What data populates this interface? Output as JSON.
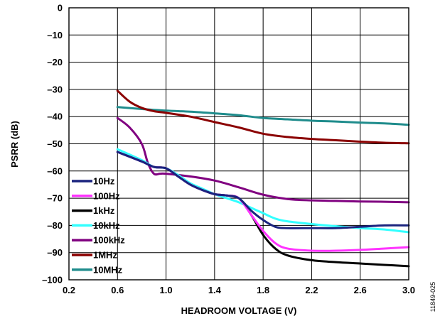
{
  "chart_data": {
    "type": "line",
    "title": "",
    "xlabel": "HEADROOM VOLTAGE (V)",
    "ylabel": "PSRR (dB)",
    "xlim": [
      0.2,
      3.0
    ],
    "ylim": [
      -100,
      0
    ],
    "xticks": [
      "0.2",
      "0.6",
      "1.0",
      "1.4",
      "1.8",
      "2.2",
      "2.6",
      "3.0"
    ],
    "yticks": [
      "0",
      "–10",
      "–20",
      "–30",
      "–40",
      "–50",
      "–60",
      "–70",
      "–80",
      "–90",
      "–100"
    ],
    "grid": true,
    "legend_position": "left",
    "figure_id": "11849-025",
    "series": [
      {
        "name": "10Hz",
        "color": "#1a237e",
        "x": [
          0.6,
          0.8,
          0.9,
          1.0,
          1.1,
          1.2,
          1.3,
          1.4,
          1.5,
          1.6,
          1.7,
          1.8,
          1.9,
          2.0,
          2.2,
          2.4,
          2.6,
          2.8,
          3.0
        ],
        "y": [
          -53,
          -56.5,
          -58.5,
          -59,
          -62,
          -65,
          -67,
          -68.5,
          -69,
          -70,
          -74.5,
          -78,
          -80.5,
          -81,
          -81,
          -81,
          -80.5,
          -80,
          -80
        ]
      },
      {
        "name": "100Hz",
        "color": "#ff33ff",
        "x": [
          0.6,
          0.8,
          0.9,
          1.0,
          1.1,
          1.2,
          1.3,
          1.4,
          1.5,
          1.6,
          1.7,
          1.8,
          1.9,
          2.0,
          2.2,
          2.4,
          2.6,
          2.8,
          3.0
        ],
        "y": [
          -53,
          -56.5,
          -58.5,
          -59,
          -62,
          -65,
          -67,
          -68.5,
          -69,
          -70,
          -76,
          -82,
          -86.5,
          -88.5,
          -89.3,
          -89.3,
          -89,
          -88.5,
          -88
        ]
      },
      {
        "name": "1kHz",
        "color": "#000000",
        "x": [
          0.6,
          0.8,
          0.9,
          1.0,
          1.1,
          1.2,
          1.3,
          1.4,
          1.5,
          1.6,
          1.7,
          1.8,
          1.9,
          2.0,
          2.2,
          2.4,
          2.6,
          2.8,
          3.0
        ],
        "y": [
          -53,
          -56.5,
          -58.5,
          -59,
          -62,
          -65,
          -67,
          -68.5,
          -69,
          -70,
          -76,
          -83.5,
          -88.5,
          -91,
          -92.8,
          -93.5,
          -94,
          -94.5,
          -95
        ]
      },
      {
        "name": "10kHz",
        "color": "#33ffff",
        "x": [
          0.6,
          0.8,
          0.9,
          1.0,
          1.1,
          1.2,
          1.3,
          1.4,
          1.5,
          1.6,
          1.7,
          1.8,
          1.9,
          2.0,
          2.2,
          2.4,
          2.6,
          2.8,
          3.0
        ],
        "y": [
          -52,
          -56,
          -58.5,
          -59,
          -61.5,
          -64.5,
          -66.5,
          -68.5,
          -70,
          -71.5,
          -73.5,
          -75.5,
          -77.5,
          -78.5,
          -79.5,
          -80.3,
          -81,
          -81.5,
          -82.5
        ]
      },
      {
        "name": "100kHz",
        "color": "#800080",
        "x": [
          0.6,
          0.7,
          0.8,
          0.85,
          0.9,
          0.95,
          1.0,
          1.2,
          1.4,
          1.6,
          1.8,
          2.0,
          2.2,
          2.4,
          2.6,
          2.8,
          3.0
        ],
        "y": [
          -40.5,
          -44,
          -50,
          -57,
          -61,
          -61,
          -61,
          -62,
          -63.5,
          -66,
          -68.7,
          -70.3,
          -70.8,
          -71,
          -71.2,
          -71.3,
          -71.5
        ]
      },
      {
        "name": "1MHz",
        "color": "#8b0000",
        "x": [
          0.6,
          0.7,
          0.8,
          0.9,
          1.0,
          1.2,
          1.4,
          1.6,
          1.8,
          2.0,
          2.2,
          2.4,
          2.6,
          2.8,
          3.0
        ],
        "y": [
          -30.5,
          -34.5,
          -36.8,
          -38,
          -38.6,
          -40,
          -42,
          -44,
          -46.3,
          -47.5,
          -48.2,
          -48.7,
          -49.2,
          -49.6,
          -49.8
        ]
      },
      {
        "name": "10MHz",
        "color": "#1f8c8c",
        "x": [
          0.6,
          0.8,
          1.0,
          1.2,
          1.4,
          1.6,
          1.8,
          2.0,
          2.2,
          2.4,
          2.6,
          2.8,
          3.0
        ],
        "y": [
          -36.5,
          -37.2,
          -37.8,
          -38.2,
          -38.8,
          -39.5,
          -40.5,
          -41,
          -41.5,
          -41.8,
          -42.2,
          -42.5,
          -43
        ]
      }
    ]
  }
}
